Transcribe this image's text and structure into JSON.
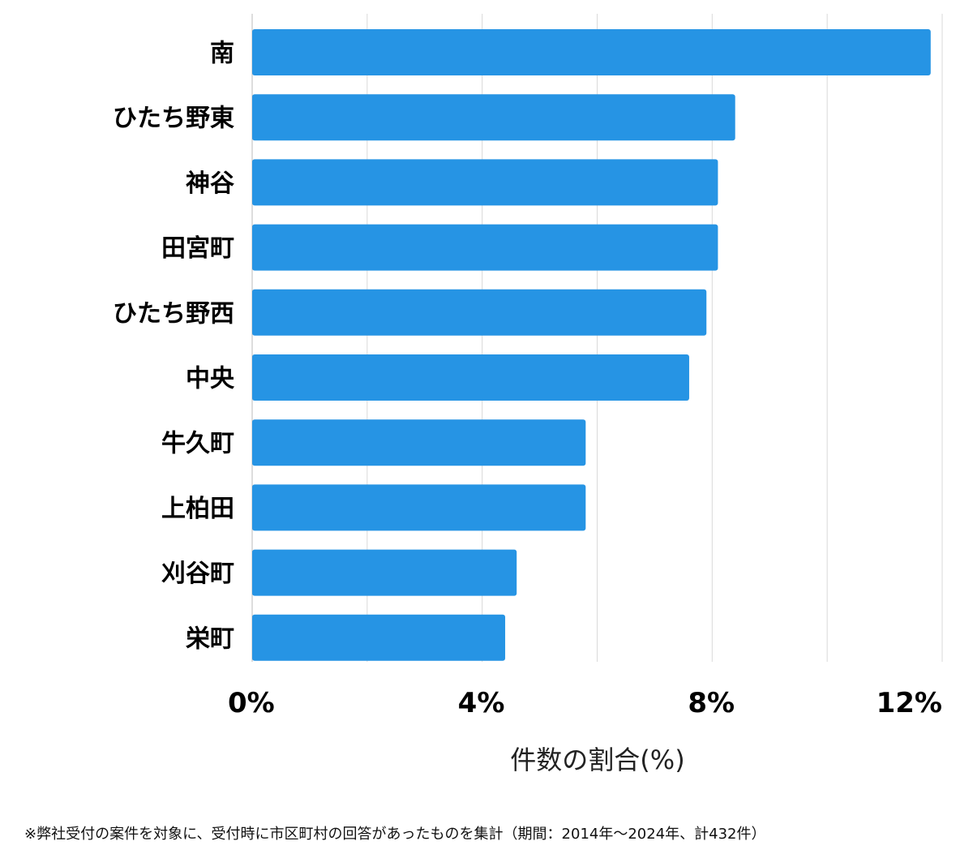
{
  "chart_data": {
    "type": "bar",
    "orientation": "horizontal",
    "categories": [
      "南",
      "ひたち野東",
      "神谷",
      "田宮町",
      "ひたち野西",
      "中央",
      "牛久町",
      "上柏田",
      "刈谷町",
      "栄町"
    ],
    "values": [
      11.8,
      8.4,
      8.1,
      8.1,
      7.9,
      7.6,
      5.8,
      5.8,
      4.6,
      4.4
    ],
    "xlim": [
      0,
      12
    ],
    "x_ticks": [
      0,
      4,
      8,
      12
    ],
    "x_tick_labels": [
      "0%",
      "4%",
      "8%",
      "12%"
    ],
    "grid": true,
    "xlabel": "件数の割合(%)",
    "ylabel": "",
    "title": "",
    "bar_color": "#2694e4",
    "grid_color": "#d9d9d9",
    "axis_color": "#bbbbbb"
  },
  "footnote": "※弊社受付の案件を対象に、受付時に市区町村の回答があったものを集計（期間：2014年～2024年、計432件）"
}
